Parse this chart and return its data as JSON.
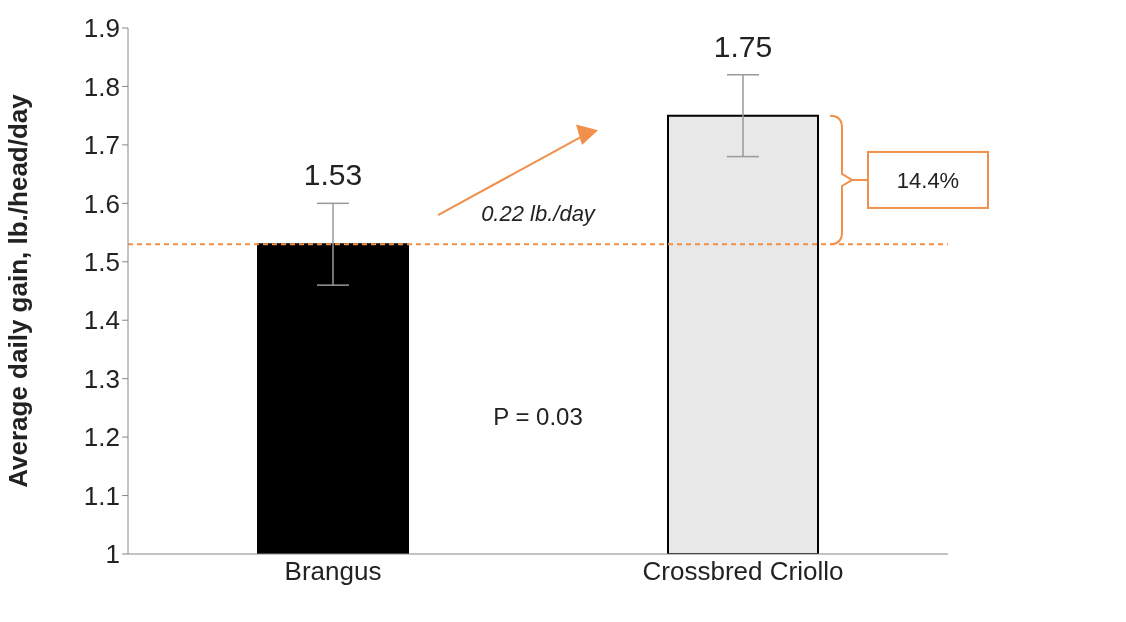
{
  "chart_data": {
    "type": "bar",
    "ylabel": "Average daily gain, lb./head/day",
    "categories": [
      "Brangus",
      "Crossbred Criollo"
    ],
    "values": [
      1.53,
      1.75
    ],
    "colors": [
      "#000000",
      "#e8e8e8"
    ],
    "errors": [
      0.07,
      0.07
    ],
    "ylim": [
      1,
      1.9
    ],
    "yticks": [
      1,
      1.1,
      1.2,
      1.3,
      1.4,
      1.5,
      1.6,
      1.7,
      1.8,
      1.9
    ],
    "data_labels": true,
    "ref_lines": [
      {
        "axis": "y",
        "value": 1.53,
        "color": "#f0904a",
        "line_style": "dashed"
      }
    ],
    "annotations": [
      "0.22 lb./day",
      "14.4%",
      "P = 0.03"
    ]
  }
}
